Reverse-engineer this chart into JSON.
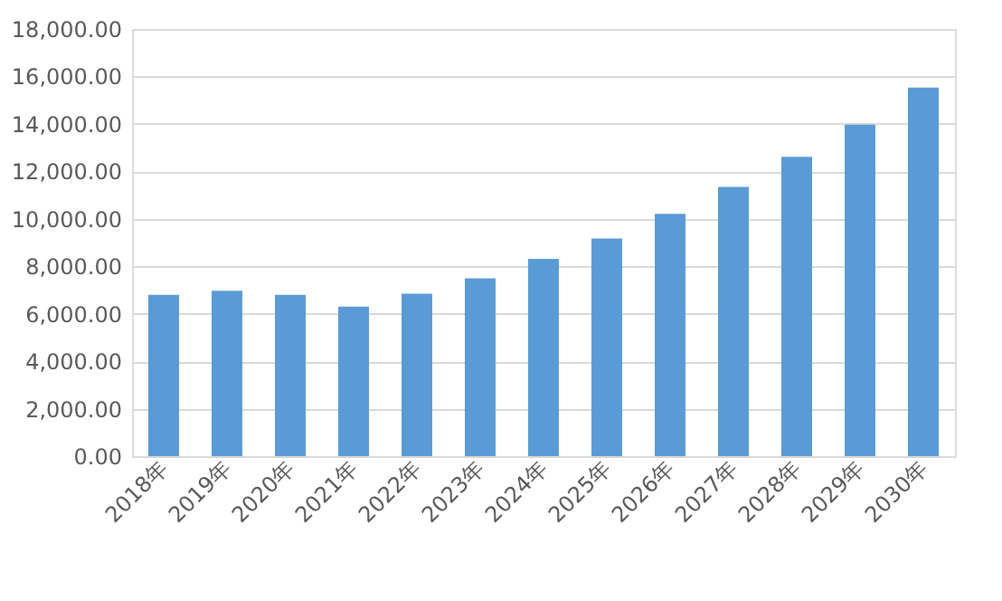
{
  "chart_data": {
    "type": "bar",
    "categories": [
      "2018年",
      "2019年",
      "2020年",
      "2021年",
      "2022年",
      "2023年",
      "2024年",
      "2025年",
      "2026年",
      "2027年",
      "2028年",
      "2029年",
      "2030年"
    ],
    "values": [
      6800,
      6970,
      6800,
      6300,
      6850,
      7490,
      8310,
      9170,
      10210,
      11350,
      12610,
      13970,
      15530
    ],
    "color": "#5b9bd5",
    "ylim": [
      0,
      18000
    ],
    "yticks": [
      {
        "value": 0,
        "label": "0.00"
      },
      {
        "value": 2000,
        "label": "2,000.00"
      },
      {
        "value": 4000,
        "label": "4,000.00"
      },
      {
        "value": 6000,
        "label": "6,000.00"
      },
      {
        "value": 8000,
        "label": "8,000.00"
      },
      {
        "value": 10000,
        "label": "10,000.00"
      },
      {
        "value": 12000,
        "label": "12,000.00"
      },
      {
        "value": 14000,
        "label": "14,000.00"
      },
      {
        "value": 16000,
        "label": "16,000.00"
      },
      {
        "value": 18000,
        "label": "18,000.00"
      }
    ],
    "grid": "y"
  }
}
